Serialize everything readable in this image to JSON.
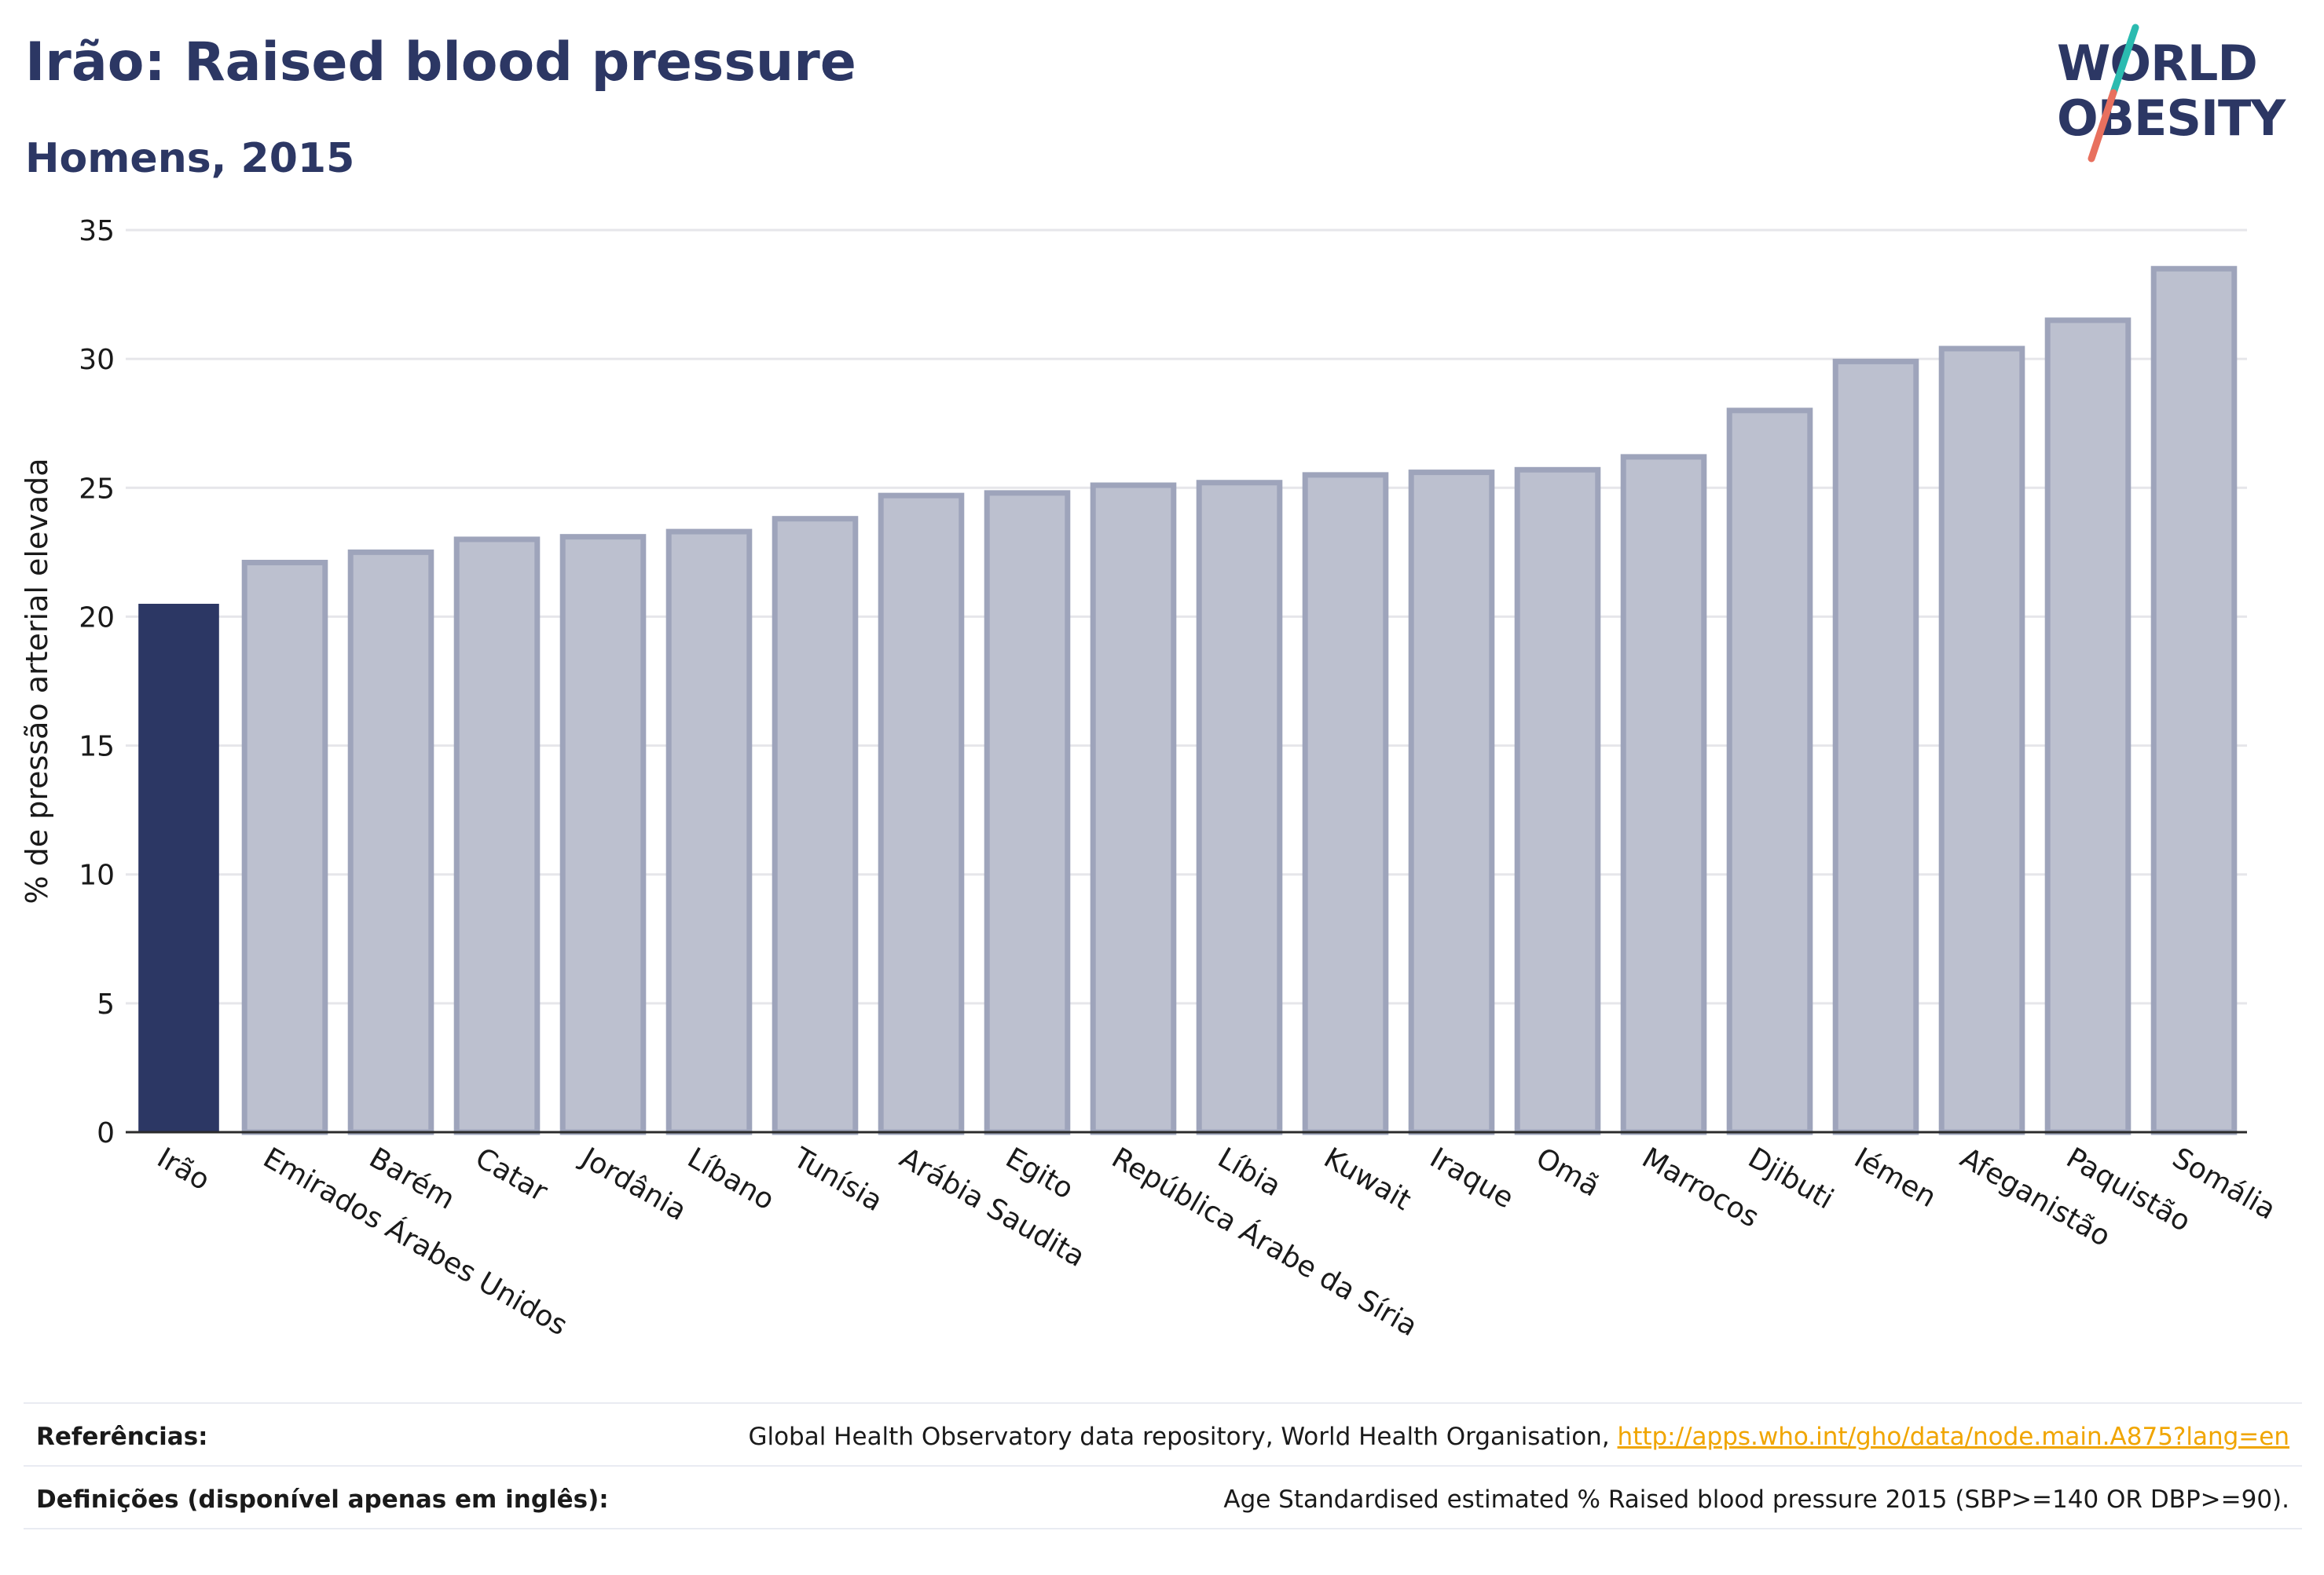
{
  "header": {
    "title": "Irão: Raised blood pressure",
    "subtitle": "Homens, 2015"
  },
  "logo": {
    "line1": "WORLD",
    "line2": "OBESITY",
    "text_color": "#2c3764",
    "slash_top_color": "#2bbbb0",
    "slash_bottom_color": "#e8705e"
  },
  "chart_data": {
    "type": "bar",
    "title": "Irão: Raised blood pressure",
    "subtitle": "Homens, 2015",
    "xlabel": "",
    "ylabel": "% de pressão arterial elevada",
    "ylim": [
      0,
      35
    ],
    "yticks": [
      0,
      5,
      10,
      15,
      20,
      25,
      30,
      35
    ],
    "grid": true,
    "highlight_color": "#2c3764",
    "bar_color": "#bcc0cf",
    "bar_edge_color": "#9ea4bb",
    "categories": [
      "Irão",
      "Emirados Árabes Unidos",
      "Barém",
      "Catar",
      "Jordânia",
      "Líbano",
      "Tunísia",
      "Arábia Saudita",
      "Egito",
      "República Árabe da Síria",
      "Líbia",
      "Kuwait",
      "Iraque",
      "Omã",
      "Marrocos",
      "Djibuti",
      "Iémen",
      "Afeganistão",
      "Paquistão",
      "Somália"
    ],
    "values": [
      20.5,
      22.1,
      22.5,
      23.0,
      23.1,
      23.3,
      23.8,
      24.7,
      24.8,
      25.1,
      25.2,
      25.5,
      25.6,
      25.7,
      26.2,
      28.0,
      29.9,
      30.4,
      31.5,
      33.5
    ],
    "highlight": [
      "Irão"
    ]
  },
  "footer": {
    "references_label": "Referências:",
    "references_text": "Global Health Observatory data repository, World Health Organisation, ",
    "references_link": "http://apps.who.int/gho/data/node.main.A875?lang=en",
    "definitions_label": "Definições (disponível apenas em inglês):",
    "definitions_text": "Age Standardised estimated % Raised blood pressure 2015 (SBP>=140 OR DBP>=90)."
  }
}
